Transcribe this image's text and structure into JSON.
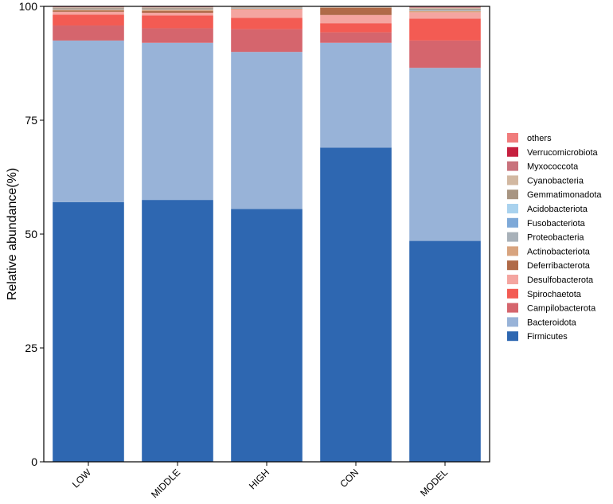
{
  "chart_data": {
    "type": "bar",
    "stacked": true,
    "title": "",
    "xlabel": "",
    "ylabel": "Relative abundance(%)",
    "ylim": [
      0,
      100
    ],
    "yticks": [
      0,
      25,
      50,
      75,
      100
    ],
    "categories": [
      "LOW",
      "MIDDLE",
      "HIGH",
      "CON",
      "MODEL"
    ],
    "legend_position": "right",
    "series": [
      {
        "name": "Firmicutes",
        "color": "#2E67B1",
        "values": [
          57.0,
          57.5,
          55.5,
          69.0,
          48.5
        ]
      },
      {
        "name": "Bacteroidota",
        "color": "#98B3D8",
        "values": [
          35.5,
          34.5,
          34.5,
          23.0,
          38.0
        ]
      },
      {
        "name": "Campilobacterota",
        "color": "#D5656D",
        "values": [
          3.3,
          3.2,
          5.0,
          2.3,
          6.0
        ]
      },
      {
        "name": "Spirochaetota",
        "color": "#F35B53",
        "values": [
          2.4,
          2.8,
          2.5,
          2.0,
          4.8
        ]
      },
      {
        "name": "Desulfobacterota",
        "color": "#F4A5A0",
        "values": [
          0.6,
          0.6,
          1.8,
          1.8,
          1.4
        ]
      },
      {
        "name": "Deferribacterota",
        "color": "#B06A48",
        "values": [
          0.3,
          0.4,
          0.0,
          1.6,
          0.0
        ]
      },
      {
        "name": "Actinobacteriota",
        "color": "#D8A47F",
        "values": [
          0.2,
          0.3,
          0.2,
          0.1,
          0.3
        ]
      },
      {
        "name": "Proteobacteria",
        "color": "#A8B1B9",
        "values": [
          0.2,
          0.2,
          0.2,
          0.1,
          0.3
        ]
      },
      {
        "name": "Fusobacteriota",
        "color": "#7EA9D8",
        "values": [
          0.0,
          0.0,
          0.0,
          0.0,
          0.0
        ]
      },
      {
        "name": "Acidobacteriota",
        "color": "#A9D2EE",
        "values": [
          0.0,
          0.0,
          0.0,
          0.0,
          0.0
        ]
      },
      {
        "name": "Gemmatimonadota",
        "color": "#A89582",
        "values": [
          0.2,
          0.2,
          0.1,
          0.0,
          0.2
        ]
      },
      {
        "name": "Cyanobacteria",
        "color": "#D2B8A1",
        "values": [
          0.1,
          0.1,
          0.1,
          0.0,
          0.2
        ]
      },
      {
        "name": "Myxococcota",
        "color": "#C9727C",
        "values": [
          0.1,
          0.1,
          0.1,
          0.1,
          0.2
        ]
      },
      {
        "name": "Verrucomicrobiota",
        "color": "#C6203F",
        "values": [
          0.0,
          0.0,
          0.0,
          0.0,
          0.0
        ]
      },
      {
        "name": "others",
        "color": "#F07C7C",
        "values": [
          0.1,
          0.1,
          0.0,
          0.0,
          0.1
        ]
      }
    ]
  }
}
